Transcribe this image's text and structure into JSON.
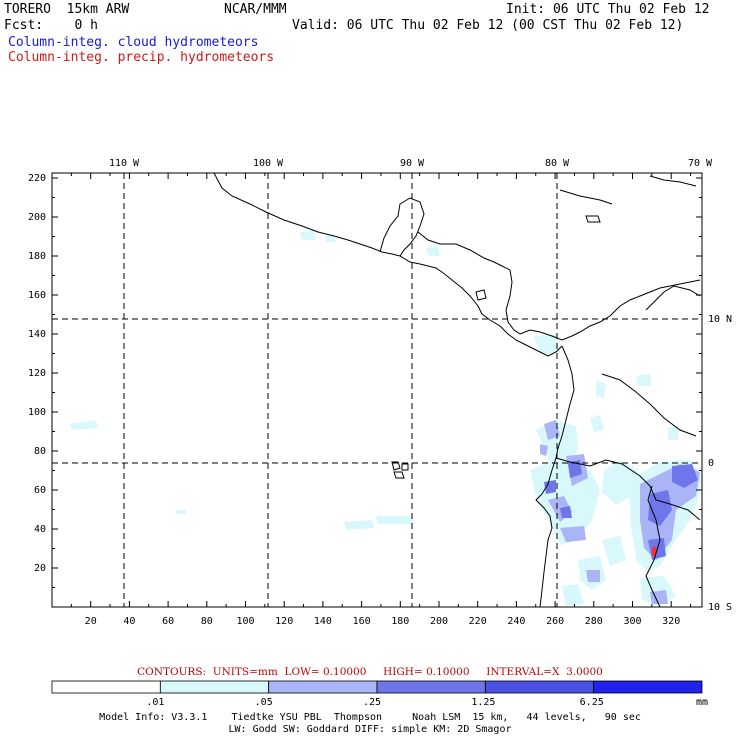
{
  "header": {
    "model": "TORERO  15km ARW",
    "center": "NCAR/MMM",
    "init": "Init: 06 UTC Thu 02 Feb 12",
    "fcst": "Fcst:    0 h",
    "valid": "Valid: 06 UTC Thu 02 Feb 12 (00 CST Thu 02 Feb 12)",
    "field1": "Column-integ. cloud hydrometeors",
    "field2": "Column-integ. precip. hydrometeors"
  },
  "map": {
    "lon_labels": [
      "110 W",
      "100 W",
      "90 W",
      "80 W",
      "70 W"
    ],
    "lat_labels": [
      "10 N",
      "0",
      "10 S"
    ],
    "x_ticks": [
      "20",
      "40",
      "60",
      "80",
      "100",
      "120",
      "140",
      "160",
      "180",
      "200",
      "220",
      "240",
      "260",
      "280",
      "300",
      "320"
    ],
    "y_ticks": [
      "20",
      "40",
      "60",
      "80",
      "100",
      "120",
      "140",
      "160",
      "180",
      "200",
      "220"
    ],
    "shade_colors": [
      "#ffffff",
      "#d9f8fb",
      "#aab4f6",
      "#6f76ea",
      "#4a4fe6",
      "#2222ee"
    ]
  },
  "contours": {
    "text": "CONTOURS:  UNITS=mm  LOW= 0.10000     HIGH= 0.10000     INTERVAL=X  3.0000"
  },
  "colorbar": {
    "labels": [
      ".01",
      ".05",
      ".25",
      "1.25",
      "6.25"
    ],
    "unit": "mm"
  },
  "footer": {
    "line1": "Model Info: V3.3.1    Tiedtke YSU PBL  Thompson     Noah LSM  15 km,   44 levels,   90 sec",
    "line2": "LW: Godd SW: Goddard DIFF: simple KM: 2D Smagor"
  }
}
